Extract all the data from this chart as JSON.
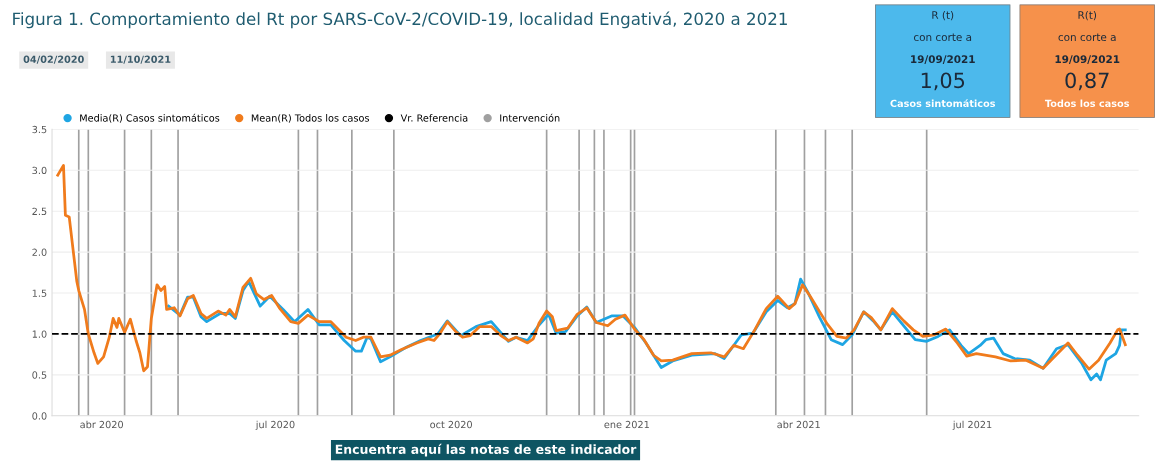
{
  "chart_data": [
    {
      "type": "line",
      "title": "Figura 1. Comportamiento del Rt por SARS-CoV-2/COVID-19, localidad Engativá, 2020 a 2021",
      "annotations": [
        "04/02/2020",
        "11/10/2021",
        "Encuentra aquí las notas de este indicador"
      ],
      "series": [
        {
          "name": "Media(R) Casos sintomáticos",
          "color": "#1ea5e3",
          "x": [
            "2020-05-06",
            "2020-05-12",
            "2020-05-16",
            "2020-05-19",
            "2020-05-23",
            "2020-05-26",
            "2020-06-02",
            "2020-06-07",
            "2020-06-10",
            "2020-06-14",
            "2020-06-17",
            "2020-06-23",
            "2020-06-28",
            "2020-07-05",
            "2020-07-11",
            "2020-07-18",
            "2020-07-24",
            "2020-07-30",
            "2020-08-06",
            "2020-08-12",
            "2020-08-15",
            "2020-08-18",
            "2020-08-20",
            "2020-08-25",
            "2020-08-30",
            "2020-09-07",
            "2020-09-15",
            "2020-09-24",
            "2020-09-29",
            "2020-10-06",
            "2020-10-14",
            "2020-10-22",
            "2020-10-31",
            "2020-11-04",
            "2020-11-10",
            "2020-11-16",
            "2020-11-21",
            "2020-11-25",
            "2020-11-30",
            "2020-12-06",
            "2020-12-11",
            "2020-12-16",
            "2020-12-24",
            "2020-12-30",
            "2021-01-05",
            "2021-01-11",
            "2021-01-19",
            "2021-01-25",
            "2021-02-04",
            "2021-02-16",
            "2021-02-21",
            "2021-03-02",
            "2021-03-08",
            "2021-03-15",
            "2021-03-21",
            "2021-03-26",
            "2021-03-30",
            "2021-04-02",
            "2021-04-06",
            "2021-04-12",
            "2021-04-18",
            "2021-04-24",
            "2021-04-29",
            "2021-05-05",
            "2021-05-10",
            "2021-05-14",
            "2021-05-20",
            "2021-05-26",
            "2021-06-01",
            "2021-06-07",
            "2021-06-13",
            "2021-06-19",
            "2021-06-25",
            "2021-06-29",
            "2021-07-05",
            "2021-07-08",
            "2021-07-12",
            "2021-07-17",
            "2021-07-23",
            "2021-07-31",
            "2021-08-07",
            "2021-08-14",
            "2021-08-20",
            "2021-08-27",
            "2021-09-01",
            "2021-09-04",
            "2021-09-06",
            "2021-09-09",
            "2021-09-14",
            "2021-09-16",
            "2021-09-17",
            "2021-09-19"
          ],
          "values": [
            1.34,
            1.23,
            1.45,
            1.45,
            1.21,
            1.15,
            1.25,
            1.25,
            1.19,
            1.53,
            1.64,
            1.34,
            1.46,
            1.3,
            1.15,
            1.3,
            1.11,
            1.11,
            0.92,
            0.79,
            0.79,
            0.96,
            0.94,
            0.66,
            0.72,
            0.83,
            0.92,
            1.0,
            1.16,
            0.98,
            1.09,
            1.15,
            0.91,
            0.96,
            0.92,
            1.11,
            1.24,
            1.01,
            1.03,
            1.22,
            1.33,
            1.14,
            1.22,
            1.22,
            1.08,
            0.89,
            0.59,
            0.67,
            0.74,
            0.76,
            0.7,
            0.99,
            1.01,
            1.27,
            1.41,
            1.32,
            1.37,
            1.67,
            1.5,
            1.2,
            0.93,
            0.87,
            0.99,
            1.27,
            1.16,
            1.05,
            1.27,
            1.1,
            0.93,
            0.91,
            0.97,
            1.05,
            0.86,
            0.76,
            0.86,
            0.93,
            0.95,
            0.76,
            0.7,
            0.68,
            0.58,
            0.82,
            0.87,
            0.65,
            0.44,
            0.51,
            0.44,
            0.68,
            0.76,
            0.86,
            1.05,
            1.05
          ]
        },
        {
          "name": "Mean(R) Todos los casos",
          "color": "#f07b1c",
          "x": [
            "2020-03-09",
            "2020-03-12",
            "2020-03-13",
            "2020-03-15",
            "2020-03-19",
            "2020-03-20",
            "2020-03-23",
            "2020-03-25",
            "2020-03-28",
            "2020-03-30",
            "2020-04-02",
            "2020-04-05",
            "2020-04-07",
            "2020-04-09",
            "2020-04-10",
            "2020-04-13",
            "2020-04-16",
            "2020-04-19",
            "2020-04-21",
            "2020-04-23",
            "2020-04-25",
            "2020-04-27",
            "2020-04-30",
            "2020-05-02",
            "2020-05-04",
            "2020-05-05",
            "2020-05-09",
            "2020-05-12",
            "2020-05-16",
            "2020-05-19",
            "2020-05-23",
            "2020-05-26",
            "2020-06-01",
            "2020-06-05",
            "2020-06-07",
            "2020-06-10",
            "2020-06-14",
            "2020-06-18",
            "2020-06-21",
            "2020-06-25",
            "2020-06-29",
            "2020-07-03",
            "2020-07-09",
            "2020-07-13",
            "2020-07-18",
            "2020-07-24",
            "2020-07-30",
            "2020-08-07",
            "2020-08-12",
            "2020-08-16",
            "2020-08-20",
            "2020-08-25",
            "2020-08-30",
            "2020-09-05",
            "2020-09-13",
            "2020-09-19",
            "2020-09-22",
            "2020-09-25",
            "2020-09-29",
            "2020-10-03",
            "2020-10-07",
            "2020-10-11",
            "2020-10-16",
            "2020-10-22",
            "2020-10-27",
            "2020-10-31",
            "2020-11-04",
            "2020-11-10",
            "2020-11-13",
            "2020-11-16",
            "2020-11-20",
            "2020-11-23",
            "2020-11-25",
            "2020-12-01",
            "2020-12-06",
            "2020-12-11",
            "2020-12-16",
            "2020-12-22",
            "2020-12-26",
            "2020-12-31",
            "2021-01-05",
            "2021-01-10",
            "2021-01-15",
            "2021-01-19",
            "2021-01-25",
            "2021-02-04",
            "2021-02-14",
            "2021-02-21",
            "2021-02-26",
            "2021-03-03",
            "2021-03-09",
            "2021-03-15",
            "2021-03-21",
            "2021-03-27",
            "2021-03-30",
            "2021-04-03",
            "2021-04-07",
            "2021-04-12",
            "2021-04-16",
            "2021-04-21",
            "2021-04-26",
            "2021-04-30",
            "2021-05-05",
            "2021-05-09",
            "2021-05-14",
            "2021-05-20",
            "2021-05-26",
            "2021-05-31",
            "2021-06-05",
            "2021-06-11",
            "2021-06-17",
            "2021-06-23",
            "2021-06-28",
            "2021-07-03",
            "2021-07-13",
            "2021-07-21",
            "2021-07-29",
            "2021-08-07",
            "2021-08-12",
            "2021-08-20",
            "2021-08-25",
            "2021-08-31",
            "2021-09-05",
            "2021-09-11",
            "2021-09-15",
            "2021-09-16",
            "2021-09-19"
          ],
          "values": [
            2.94,
            3.06,
            2.45,
            2.43,
            1.64,
            1.53,
            1.3,
            1.0,
            0.77,
            0.64,
            0.72,
            0.96,
            1.19,
            1.08,
            1.19,
            1.02,
            1.18,
            0.92,
            0.77,
            0.55,
            0.6,
            1.19,
            1.6,
            1.53,
            1.58,
            1.3,
            1.32,
            1.22,
            1.43,
            1.47,
            1.25,
            1.19,
            1.28,
            1.23,
            1.3,
            1.21,
            1.57,
            1.68,
            1.49,
            1.42,
            1.47,
            1.32,
            1.15,
            1.13,
            1.23,
            1.15,
            1.15,
            0.96,
            0.92,
            0.96,
            0.96,
            0.72,
            0.74,
            0.81,
            0.89,
            0.94,
            0.92,
            1.0,
            1.15,
            1.04,
            0.96,
            0.98,
            1.09,
            1.09,
            0.98,
            0.92,
            0.96,
            0.89,
            0.94,
            1.13,
            1.28,
            1.21,
            1.04,
            1.07,
            1.24,
            1.32,
            1.14,
            1.1,
            1.18,
            1.23,
            1.06,
            0.93,
            0.74,
            0.67,
            0.68,
            0.76,
            0.77,
            0.72,
            0.86,
            0.82,
            1.05,
            1.31,
            1.46,
            1.31,
            1.37,
            1.6,
            1.46,
            1.27,
            1.12,
            0.97,
            0.95,
            1.05,
            1.27,
            1.2,
            1.05,
            1.31,
            1.16,
            1.05,
            0.97,
            0.99,
            1.06,
            0.89,
            0.73,
            0.76,
            0.72,
            0.67,
            0.68,
            0.58,
            0.7,
            0.89,
            0.74,
            0.57,
            0.68,
            0.89,
            1.05,
            1.06,
            0.87
          ]
        }
      ],
      "ref_lines": [
        {
          "axis": "y",
          "value": 1.0,
          "label": "Vr. Referencia",
          "color": "#000000",
          "line_style": "dashed"
        },
        {
          "axis": "x",
          "value": "2020-03-20",
          "label": "Intervención",
          "color": "#a0a0a0"
        },
        {
          "axis": "x",
          "value": "2020-03-25",
          "color": "#a0a0a0"
        },
        {
          "axis": "x",
          "value": "2020-04-13",
          "color": "#a0a0a0"
        },
        {
          "axis": "x",
          "value": "2020-04-27",
          "color": "#a0a0a0"
        },
        {
          "axis": "x",
          "value": "2020-05-11",
          "color": "#a0a0a0"
        },
        {
          "axis": "x",
          "value": "2020-07-13",
          "color": "#a0a0a0"
        },
        {
          "axis": "x",
          "value": "2020-07-23",
          "color": "#a0a0a0"
        },
        {
          "axis": "x",
          "value": "2020-08-10",
          "color": "#a0a0a0"
        },
        {
          "axis": "x",
          "value": "2020-09-01",
          "color": "#a0a0a0"
        },
        {
          "axis": "x",
          "value": "2020-11-20",
          "color": "#a0a0a0"
        },
        {
          "axis": "x",
          "value": "2020-12-07",
          "color": "#a0a0a0"
        },
        {
          "axis": "x",
          "value": "2020-12-15",
          "color": "#a0a0a0"
        },
        {
          "axis": "x",
          "value": "2020-12-20",
          "color": "#a0a0a0"
        },
        {
          "axis": "x",
          "value": "2021-01-03",
          "color": "#a0a0a0"
        },
        {
          "axis": "x",
          "value": "2021-01-05",
          "color": "#a0a0a0"
        },
        {
          "axis": "x",
          "value": "2021-03-20",
          "color": "#a0a0a0"
        },
        {
          "axis": "x",
          "value": "2021-04-04",
          "color": "#a0a0a0"
        },
        {
          "axis": "x",
          "value": "2021-04-15",
          "color": "#a0a0a0"
        },
        {
          "axis": "x",
          "value": "2021-04-29",
          "color": "#a0a0a0"
        },
        {
          "axis": "x",
          "value": "2021-06-07",
          "color": "#a0a0a0"
        }
      ],
      "xlim": [
        "2020-03-06",
        "2021-09-26"
      ],
      "xticks": [
        {
          "value": "2020-04-01",
          "label": "abr 2020"
        },
        {
          "value": "2020-07-01",
          "label": "jul 2020"
        },
        {
          "value": "2020-10-01",
          "label": "oct 2020"
        },
        {
          "value": "2021-01-01",
          "label": "ene 2021"
        },
        {
          "value": "2021-04-01",
          "label": "abr 2021"
        },
        {
          "value": "2021-07-01",
          "label": "jul 2021"
        }
      ],
      "ylim": [
        0,
        3.5
      ],
      "yticks": [
        {
          "value": 0,
          "label": "0.0"
        },
        {
          "value": 0.5,
          "label": "0.5"
        },
        {
          "value": 1,
          "label": "1.0"
        },
        {
          "value": 1.5,
          "label": "1.5"
        },
        {
          "value": 2,
          "label": "2.0"
        },
        {
          "value": 2.5,
          "label": "2.5"
        },
        {
          "value": 3,
          "label": "3.0"
        },
        {
          "value": 3.5,
          "label": "3.5"
        }
      ],
      "grid": "y",
      "legend": "top left",
      "marker": "none",
      "line_style": "solid"
    },
    {
      "type": "other",
      "color": "#4cb9ec",
      "annotations": [
        "R (t)",
        "con corte a",
        "19/09/2021",
        "1,05",
        "Casos sintomáticos"
      ]
    },
    {
      "type": "other",
      "color": "#f6914b",
      "annotations": [
        "R(t)",
        "con corte a",
        "19/09/2021",
        "0,87",
        "Todos los casos"
      ]
    }
  ]
}
